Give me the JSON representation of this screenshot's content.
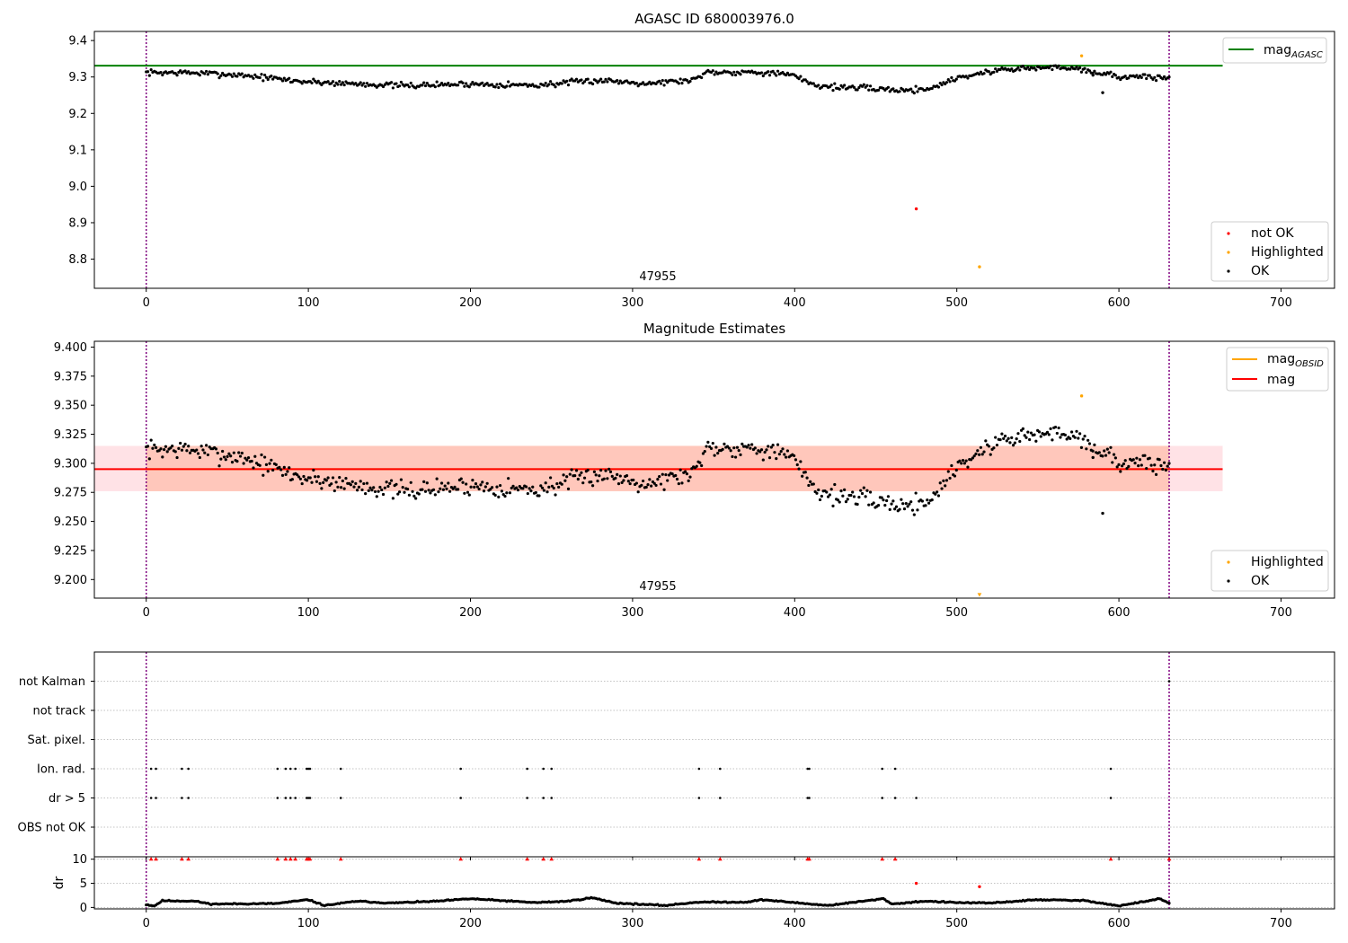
{
  "chart_data": [
    {
      "type": "scatter",
      "title": "AGASC ID 680003976.0",
      "xlabel": "",
      "ylabel": "",
      "xlim": [
        -32,
        733
      ],
      "ylim": [
        8.72,
        9.425
      ],
      "xticks": [
        0,
        100,
        200,
        300,
        400,
        500,
        600,
        700
      ],
      "yticks": [
        8.8,
        8.9,
        9.0,
        9.1,
        9.2,
        9.3,
        9.4
      ],
      "grid": false,
      "obsid_label": "47955",
      "obsid_boundaries": [
        0,
        631
      ],
      "reference_line": {
        "name": "mag_AGASC",
        "value": 9.331,
        "color": "#008000",
        "x_range": [
          -32,
          664
        ]
      },
      "legends": [
        {
          "position": "top-right",
          "entries": [
            {
              "label": "mag",
              "subscript": "AGASC",
              "color": "#008000",
              "kind": "line"
            }
          ]
        },
        {
          "position": "bottom-right",
          "entries": [
            {
              "label": "not OK",
              "color": "#ff0000",
              "kind": "point"
            },
            {
              "label": "Highlighted",
              "color": "#ffa500",
              "kind": "point"
            },
            {
              "label": "OK",
              "color": "#000000",
              "kind": "point"
            }
          ]
        }
      ],
      "series": [
        {
          "name": "OK",
          "color": "#000000",
          "kind": "curve",
          "x_range": [
            0,
            631
          ],
          "count": 631,
          "seed": 7,
          "knots": [
            [
              0,
              9.312
            ],
            [
              25,
              9.312
            ],
            [
              60,
              9.305
            ],
            [
              95,
              9.288
            ],
            [
              120,
              9.283
            ],
            [
              160,
              9.276
            ],
            [
              200,
              9.281
            ],
            [
              240,
              9.277
            ],
            [
              280,
              9.291
            ],
            [
              310,
              9.283
            ],
            [
              338,
              9.292
            ],
            [
              345,
              9.314
            ],
            [
              380,
              9.313
            ],
            [
              398,
              9.305
            ],
            [
              415,
              9.275
            ],
            [
              440,
              9.27
            ],
            [
              470,
              9.263
            ],
            [
              485,
              9.27
            ],
            [
              500,
              9.298
            ],
            [
              530,
              9.322
            ],
            [
              570,
              9.327
            ],
            [
              600,
              9.301
            ],
            [
              631,
              9.298
            ]
          ],
          "noise": 0.012
        },
        {
          "name": "OK outliers",
          "color": "#000000",
          "kind": "points",
          "x": [
            584,
            590
          ],
          "y": [
            9.305,
            9.257
          ]
        },
        {
          "name": "not OK",
          "color": "#ff0000",
          "kind": "points",
          "x": [
            475
          ],
          "y": [
            8.938
          ]
        },
        {
          "name": "Highlighted",
          "color": "#ffa500",
          "kind": "points",
          "x": [
            514,
            577
          ],
          "y": [
            8.779,
            9.358
          ]
        }
      ]
    },
    {
      "type": "scatter",
      "title": "Magnitude Estimates",
      "xlabel": "",
      "ylabel": "",
      "xlim": [
        -32,
        733
      ],
      "ylim": [
        9.184,
        9.405
      ],
      "xticks": [
        0,
        100,
        200,
        300,
        400,
        500,
        600,
        700
      ],
      "yticks": [
        9.2,
        9.225,
        9.25,
        9.275,
        9.3,
        9.325,
        9.35,
        9.375,
        9.4
      ],
      "grid": false,
      "obsid_label": "47955",
      "obsid_boundaries": [
        0,
        631
      ],
      "bands": [
        {
          "y_range": [
            9.276,
            9.315
          ],
          "x_range": [
            -32,
            664
          ],
          "color": "#ffb6c1",
          "opacity": 0.4
        },
        {
          "y_range": [
            9.276,
            9.315
          ],
          "x_range": [
            0,
            631
          ],
          "color": "#ffa07a",
          "opacity": 0.4
        }
      ],
      "lines": [
        {
          "name": "mag_OBSID",
          "value": 9.295,
          "color": "#ffa500",
          "x_range": [
            0,
            631
          ]
        },
        {
          "name": "mag",
          "value": 9.295,
          "color": "#ff0000",
          "x_range": [
            -32,
            664
          ]
        }
      ],
      "legends": [
        {
          "position": "top-right",
          "entries": [
            {
              "label": "mag",
              "subscript": "OBSID",
              "color": "#ffa500",
              "kind": "line"
            },
            {
              "label": "mag",
              "subscript": "",
              "color": "#ff0000",
              "kind": "line"
            }
          ]
        },
        {
          "position": "bottom-right",
          "entries": [
            {
              "label": "Highlighted",
              "color": "#ffa500",
              "kind": "point"
            },
            {
              "label": "OK",
              "color": "#000000",
              "kind": "point"
            }
          ]
        }
      ],
      "series": [
        {
          "name": "OK",
          "color": "#000000",
          "kind": "curve",
          "x_range": [
            0,
            631
          ],
          "count": 631,
          "seed": 7,
          "knots": [
            [
              0,
              9.312
            ],
            [
              25,
              9.312
            ],
            [
              60,
              9.305
            ],
            [
              95,
              9.288
            ],
            [
              120,
              9.283
            ],
            [
              160,
              9.276
            ],
            [
              200,
              9.281
            ],
            [
              240,
              9.277
            ],
            [
              280,
              9.291
            ],
            [
              310,
              9.283
            ],
            [
              338,
              9.292
            ],
            [
              345,
              9.314
            ],
            [
              380,
              9.313
            ],
            [
              398,
              9.305
            ],
            [
              415,
              9.275
            ],
            [
              440,
              9.27
            ],
            [
              470,
              9.263
            ],
            [
              485,
              9.27
            ],
            [
              500,
              9.298
            ],
            [
              530,
              9.322
            ],
            [
              570,
              9.327
            ],
            [
              600,
              9.301
            ],
            [
              631,
              9.298
            ]
          ],
          "noise": 0.012
        },
        {
          "name": "OK outliers",
          "color": "#000000",
          "kind": "points",
          "x": [
            584,
            590
          ],
          "y": [
            9.305,
            9.257
          ]
        },
        {
          "name": "Highlighted",
          "color": "#ffa500",
          "kind": "points",
          "x": [
            577
          ],
          "y": [
            9.358
          ]
        },
        {
          "name": "Highlighted (below range)",
          "color": "#ffa500",
          "kind": "triangles",
          "x": [
            514
          ],
          "y": [
            9.184
          ]
        }
      ]
    },
    {
      "type": "scatter",
      "title": "",
      "xlabel": "",
      "ylabel": "",
      "xlim": [
        -32,
        733
      ],
      "categories": [
        "OBS not OK",
        "dr > 5",
        "Ion. rad.",
        "Sat. pixel.",
        "not track",
        "not Kalman"
      ],
      "grid": true,
      "obsid_boundaries": [
        0,
        631
      ],
      "flags": [
        {
          "category": "Ion. rad.",
          "color": "#000000",
          "x": [
            3,
            6,
            22,
            26,
            81,
            86,
            89,
            92,
            99,
            100,
            101,
            120,
            194,
            235,
            245,
            250,
            341,
            354,
            408,
            409,
            454,
            462,
            595
          ]
        },
        {
          "category": "dr > 5",
          "color": "#000000",
          "x": [
            3,
            6,
            22,
            26,
            81,
            86,
            89,
            92,
            99,
            100,
            101,
            120,
            194,
            235,
            245,
            250,
            341,
            354,
            408,
            409,
            454,
            462,
            475,
            595
          ]
        },
        {
          "category": "not Kalman",
          "color": "#000000",
          "x": [
            631
          ]
        }
      ]
    },
    {
      "type": "scatter",
      "title": "",
      "xlabel": "",
      "ylabel": "dr",
      "xlim": [
        -32,
        733
      ],
      "ylim": [
        -0.3,
        10.5
      ],
      "xticks": [
        0,
        100,
        200,
        300,
        400,
        500,
        600,
        700
      ],
      "yticks": [
        0,
        5,
        10
      ],
      "grid": false,
      "series": [
        {
          "name": "dr",
          "color": "#000000",
          "kind": "curve",
          "x_range": [
            0,
            631
          ],
          "count": 631,
          "seed": 11,
          "knots": [
            [
              0,
              0.6
            ],
            [
              5,
              0.3
            ],
            [
              10,
              1.4
            ],
            [
              30,
              1.3
            ],
            [
              40,
              0.7
            ],
            [
              80,
              0.8
            ],
            [
              100,
              1.6
            ],
            [
              110,
              0.4
            ],
            [
              130,
              1.3
            ],
            [
              150,
              0.9
            ],
            [
              180,
              1.3
            ],
            [
              200,
              1.8
            ],
            [
              240,
              1.0
            ],
            [
              260,
              1.3
            ],
            [
              275,
              2.0
            ],
            [
              290,
              0.9
            ],
            [
              320,
              0.4
            ],
            [
              340,
              1.1
            ],
            [
              370,
              1.1
            ],
            [
              380,
              1.6
            ],
            [
              420,
              0.4
            ],
            [
              455,
              1.8
            ],
            [
              460,
              0.7
            ],
            [
              480,
              1.3
            ],
            [
              500,
              1.0
            ],
            [
              520,
              0.9
            ],
            [
              550,
              1.6
            ],
            [
              580,
              1.4
            ],
            [
              600,
              0.3
            ],
            [
              625,
              1.8
            ],
            [
              631,
              0.9
            ]
          ],
          "noise": 0.18
        },
        {
          "name": "dr clipped",
          "color": "#ff0000",
          "kind": "triangles",
          "x": [
            3,
            6,
            22,
            26,
            81,
            86,
            89,
            92,
            99,
            100,
            101,
            120,
            194,
            235,
            245,
            250,
            341,
            354,
            408,
            409,
            454,
            462,
            595,
            631
          ],
          "y": [
            10,
            10,
            10,
            10,
            10,
            10,
            10,
            10,
            10,
            10,
            10,
            10,
            10,
            10,
            10,
            10,
            10,
            10,
            10,
            10,
            10,
            10,
            10,
            10
          ]
        },
        {
          "name": "dr high",
          "color": "#ff0000",
          "kind": "points",
          "x": [
            475,
            514
          ],
          "y": [
            5.0,
            4.3
          ]
        }
      ]
    }
  ]
}
